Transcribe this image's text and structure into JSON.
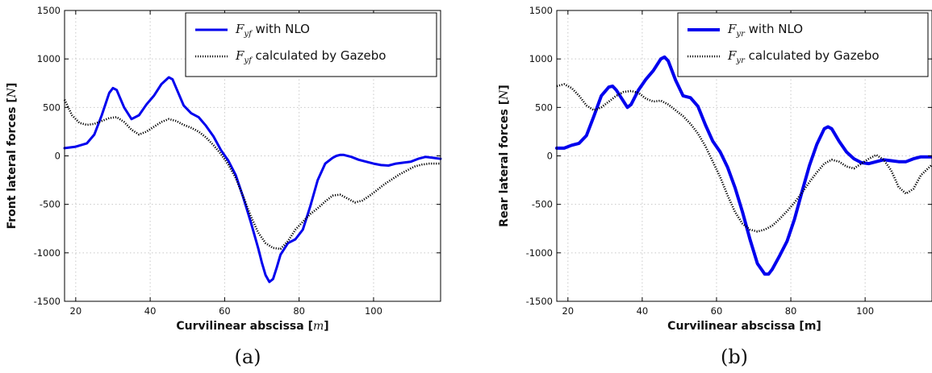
{
  "chart_data": [
    {
      "type": "line",
      "caption": "(a)",
      "xlabel": "Curvilinear abscissa  [",
      "xlabel_unit": "m",
      "xlabel_unit_style": "italic",
      "xlabel_close": "]",
      "ylabel": "Front lateral forces [",
      "ylabel_unit": "N",
      "ylabel_close": "]",
      "xlim": [
        17,
        118
      ],
      "ylim": [
        -1500,
        1500
      ],
      "xticks": [
        20,
        40,
        60,
        80,
        100
      ],
      "yticks": [
        -1500,
        -1000,
        -500,
        0,
        500,
        1000,
        1500
      ],
      "grid": true,
      "legend_placement": "top-right",
      "series": [
        {
          "name": "F_yf with NLO",
          "legend_math": "F",
          "legend_sub": "yf",
          "legend_text": "with NLO",
          "color": "#0000ee",
          "style": "solid",
          "width": 3,
          "x": [
            17,
            20,
            23,
            25,
            27,
            29,
            30,
            31,
            33,
            35,
            37,
            39,
            41,
            43,
            45,
            46,
            47,
            49,
            51,
            53,
            55,
            57,
            59,
            61,
            63,
            65,
            67,
            69,
            70,
            71,
            72,
            73,
            74,
            75,
            77,
            79,
            81,
            83,
            85,
            87,
            89,
            90,
            91,
            92,
            94,
            96,
            98,
            100,
            102,
            104,
            106,
            108,
            110,
            112,
            114,
            116,
            118
          ],
          "y": [
            80,
            95,
            130,
            220,
            420,
            650,
            700,
            680,
            500,
            380,
            420,
            530,
            620,
            740,
            810,
            790,
            700,
            520,
            440,
            400,
            310,
            200,
            60,
            -50,
            -200,
            -430,
            -680,
            -950,
            -1100,
            -1230,
            -1300,
            -1270,
            -1150,
            -1020,
            -900,
            -860,
            -760,
            -520,
            -250,
            -80,
            -20,
            0,
            10,
            10,
            -10,
            -40,
            -60,
            -80,
            -95,
            -100,
            -80,
            -70,
            -60,
            -30,
            -10,
            -20,
            -30
          ]
        },
        {
          "name": "F_yf calculated by Gazebo",
          "legend_math": "F",
          "legend_sub": "yf",
          "legend_text": "calculated by Gazebo",
          "color": "#000000",
          "style": "dotted",
          "width": 3,
          "x": [
            17,
            19,
            21,
            23,
            25,
            27,
            29,
            31,
            33,
            35,
            37,
            39,
            41,
            43,
            45,
            47,
            49,
            51,
            53,
            55,
            57,
            59,
            61,
            63,
            65,
            67,
            69,
            71,
            73,
            75,
            77,
            79,
            81,
            83,
            85,
            87,
            89,
            91,
            93,
            95,
            97,
            99,
            101,
            103,
            105,
            107,
            109,
            111,
            113,
            115,
            118
          ],
          "y": [
            580,
            420,
            340,
            320,
            330,
            360,
            390,
            400,
            350,
            270,
            220,
            250,
            300,
            350,
            380,
            360,
            320,
            290,
            250,
            190,
            110,
            20,
            -90,
            -230,
            -420,
            -620,
            -790,
            -900,
            -950,
            -960,
            -880,
            -760,
            -680,
            -600,
            -540,
            -470,
            -410,
            -400,
            -440,
            -480,
            -460,
            -410,
            -350,
            -290,
            -240,
            -190,
            -150,
            -110,
            -90,
            -80,
            -80
          ]
        }
      ]
    },
    {
      "type": "line",
      "caption": "(b)",
      "xlabel": "Curvilinear abscissa  [m]",
      "xlabel_unit": "",
      "xlabel_close": "",
      "ylabel": "Rear lateral forces [",
      "ylabel_unit": "N",
      "ylabel_close": "]",
      "xlim": [
        17,
        118
      ],
      "ylim": [
        -1500,
        1500
      ],
      "xticks": [
        20,
        40,
        60,
        80,
        100
      ],
      "yticks": [
        -1500,
        -1000,
        -500,
        0,
        500,
        1000,
        1500
      ],
      "grid": true,
      "legend_placement": "top-right",
      "series": [
        {
          "name": "F_yr with NLO",
          "legend_math": "F",
          "legend_sub": "yr",
          "legend_text": "with NLO",
          "color": "#0000ee",
          "style": "solid",
          "width": 4,
          "x": [
            17,
            19,
            21,
            23,
            25,
            27,
            29,
            31,
            32,
            33,
            35,
            36,
            37,
            39,
            41,
            43,
            45,
            46,
            47,
            49,
            51,
            53,
            55,
            57,
            59,
            61,
            63,
            65,
            67,
            69,
            71,
            73,
            74,
            75,
            77,
            79,
            81,
            83,
            85,
            87,
            89,
            90,
            91,
            93,
            95,
            97,
            99,
            101,
            103,
            105,
            107,
            109,
            111,
            113,
            115,
            118
          ],
          "y": [
            80,
            80,
            110,
            130,
            210,
            410,
            620,
            710,
            720,
            680,
            560,
            500,
            530,
            680,
            790,
            880,
            1000,
            1020,
            980,
            780,
            620,
            600,
            510,
            320,
            150,
            40,
            -120,
            -330,
            -580,
            -860,
            -1110,
            -1220,
            -1220,
            -1170,
            -1030,
            -880,
            -650,
            -370,
            -100,
            120,
            280,
            300,
            280,
            150,
            40,
            -30,
            -70,
            -80,
            -60,
            -40,
            -50,
            -60,
            -60,
            -30,
            -10,
            -10
          ]
        },
        {
          "name": "F_yr calculated by Gazebo",
          "legend_math": "F",
          "legend_sub": "yr",
          "legend_text": "calculated by Gazebo",
          "color": "#000000",
          "style": "dotted",
          "width": 3,
          "x": [
            17,
            19,
            21,
            23,
            25,
            27,
            29,
            31,
            33,
            35,
            37,
            39,
            41,
            43,
            45,
            47,
            49,
            51,
            53,
            55,
            57,
            59,
            61,
            63,
            65,
            67,
            69,
            71,
            73,
            75,
            77,
            79,
            81,
            83,
            85,
            87,
            89,
            91,
            93,
            95,
            97,
            99,
            101,
            103,
            105,
            107,
            109,
            111,
            113,
            115,
            118
          ],
          "y": [
            720,
            740,
            700,
            620,
            520,
            470,
            500,
            560,
            620,
            660,
            670,
            650,
            590,
            560,
            570,
            530,
            470,
            410,
            330,
            230,
            100,
            -60,
            -220,
            -410,
            -580,
            -700,
            -760,
            -780,
            -760,
            -720,
            -650,
            -570,
            -480,
            -380,
            -270,
            -170,
            -80,
            -40,
            -60,
            -110,
            -130,
            -80,
            -30,
            10,
            -40,
            -150,
            -320,
            -390,
            -340,
            -200,
            -90
          ]
        }
      ]
    }
  ]
}
